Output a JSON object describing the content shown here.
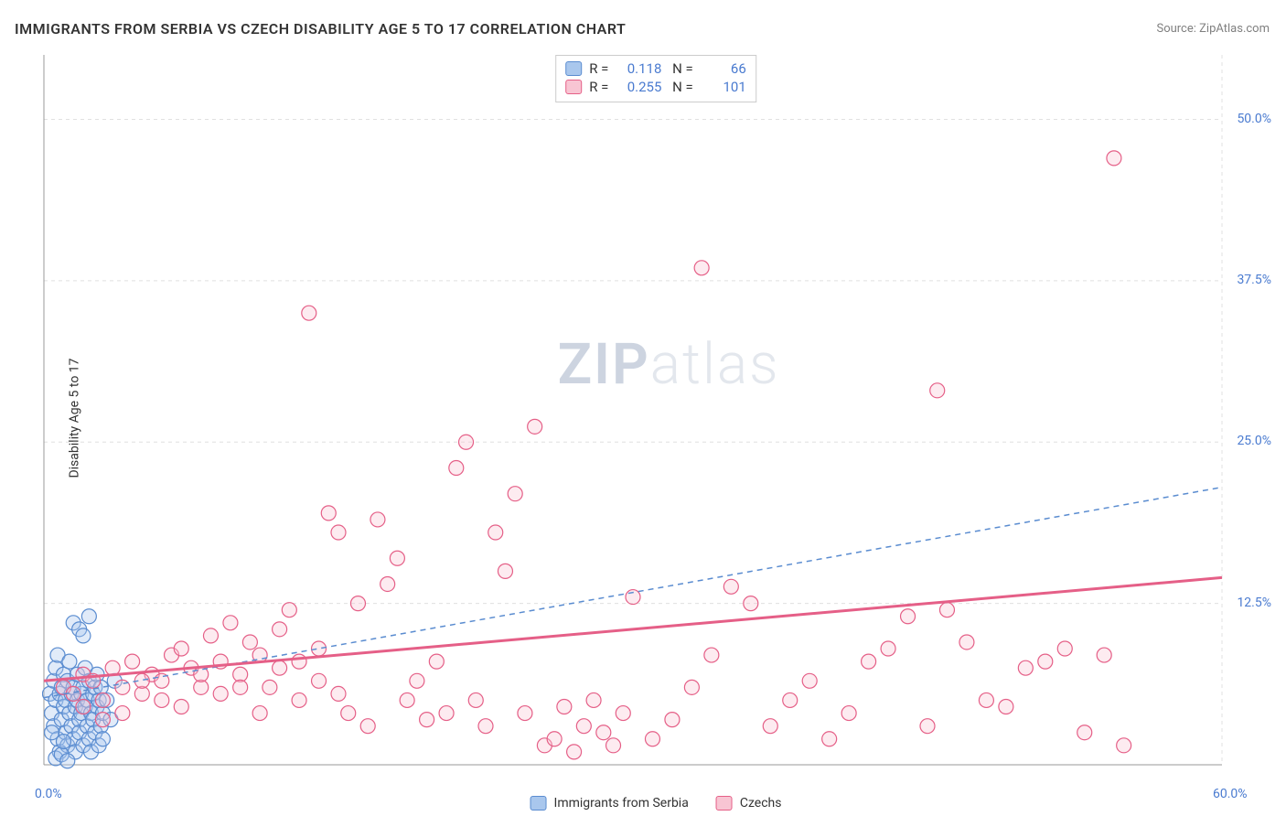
{
  "title": "IMMIGRANTS FROM SERBIA VS CZECH DISABILITY AGE 5 TO 17 CORRELATION CHART",
  "source": "Source: ZipAtlas.com",
  "y_axis_label": "Disability Age 5 to 17",
  "watermark": "ZIPatlas",
  "chart": {
    "type": "scatter",
    "background_color": "#ffffff",
    "border_color": "#999999",
    "grid_color": "#e0e0e0",
    "grid_dash": "4 4",
    "xlim": [
      0,
      60
    ],
    "ylim": [
      0,
      55
    ],
    "x_ticks": [
      {
        "v": 0,
        "label": "0.0%"
      },
      {
        "v": 60,
        "label": "60.0%"
      }
    ],
    "y_ticks": [
      {
        "v": 12.5,
        "label": "12.5%"
      },
      {
        "v": 25.0,
        "label": "25.0%"
      },
      {
        "v": 37.5,
        "label": "37.5%"
      },
      {
        "v": 50.0,
        "label": "50.0%"
      }
    ],
    "marker_radius": 8,
    "marker_opacity": 0.35,
    "series": [
      {
        "name": "Immigrants from Serbia",
        "color_fill": "#a9c7ed",
        "color_stroke": "#5a8cd0",
        "R": "0.118",
        "N": "66",
        "trend": {
          "stroke": "#5a8cd0",
          "dash": "6 5",
          "width": 1.5,
          "x1": 0,
          "y1": 5.2,
          "x2": 60,
          "y2": 21.5
        },
        "points": [
          [
            0.3,
            5.5
          ],
          [
            0.4,
            4.0
          ],
          [
            0.5,
            6.5
          ],
          [
            0.5,
            3.0
          ],
          [
            0.6,
            5.0
          ],
          [
            0.6,
            7.5
          ],
          [
            0.7,
            2.0
          ],
          [
            0.7,
            8.5
          ],
          [
            0.8,
            1.0
          ],
          [
            0.8,
            5.5
          ],
          [
            0.9,
            6.0
          ],
          [
            0.9,
            3.5
          ],
          [
            1.0,
            4.5
          ],
          [
            1.0,
            7.0
          ],
          [
            1.1,
            2.5
          ],
          [
            1.1,
            5.0
          ],
          [
            1.2,
            1.5
          ],
          [
            1.2,
            6.5
          ],
          [
            1.3,
            4.0
          ],
          [
            1.3,
            8.0
          ],
          [
            1.4,
            3.0
          ],
          [
            1.4,
            5.5
          ],
          [
            1.5,
            2.0
          ],
          [
            1.5,
            6.0
          ],
          [
            1.6,
            4.5
          ],
          [
            1.6,
            1.0
          ],
          [
            1.7,
            5.0
          ],
          [
            1.7,
            7.0
          ],
          [
            1.8,
            3.5
          ],
          [
            1.8,
            2.5
          ],
          [
            1.9,
            5.5
          ],
          [
            1.9,
            4.0
          ],
          [
            2.0,
            6.0
          ],
          [
            2.0,
            1.5
          ],
          [
            2.1,
            4.5
          ],
          [
            2.1,
            7.5
          ],
          [
            2.2,
            3.0
          ],
          [
            2.2,
            5.0
          ],
          [
            2.3,
            2.0
          ],
          [
            2.3,
            6.5
          ],
          [
            2.4,
            4.0
          ],
          [
            2.4,
            1.0
          ],
          [
            2.5,
            5.5
          ],
          [
            2.5,
            3.5
          ],
          [
            2.6,
            6.0
          ],
          [
            2.6,
            2.5
          ],
          [
            2.7,
            4.5
          ],
          [
            2.7,
            7.0
          ],
          [
            2.8,
            5.0
          ],
          [
            2.8,
            1.5
          ],
          [
            2.9,
            3.0
          ],
          [
            2.9,
            6.0
          ],
          [
            3.0,
            4.0
          ],
          [
            3.0,
            2.0
          ],
          [
            3.2,
            5.0
          ],
          [
            3.4,
            3.5
          ],
          [
            3.6,
            6.5
          ],
          [
            0.6,
            0.5
          ],
          [
            0.9,
            0.8
          ],
          [
            1.2,
            0.3
          ],
          [
            1.5,
            11.0
          ],
          [
            1.8,
            10.5
          ],
          [
            2.0,
            10.0
          ],
          [
            2.3,
            11.5
          ],
          [
            0.4,
            2.5
          ],
          [
            1.0,
            1.8
          ]
        ]
      },
      {
        "name": "Czechs",
        "color_fill": "#f8c5d3",
        "color_stroke": "#e55f87",
        "R": "0.255",
        "N": "101",
        "trend": {
          "stroke": "#e55f87",
          "dash": "none",
          "width": 3,
          "x1": 0,
          "y1": 6.5,
          "x2": 60,
          "y2": 14.5
        },
        "points": [
          [
            1.0,
            6.0
          ],
          [
            1.5,
            5.5
          ],
          [
            2.0,
            7.0
          ],
          [
            2.5,
            6.5
          ],
          [
            3.0,
            5.0
          ],
          [
            3.5,
            7.5
          ],
          [
            4.0,
            6.0
          ],
          [
            4.5,
            8.0
          ],
          [
            5.0,
            5.5
          ],
          [
            5.5,
            7.0
          ],
          [
            6.0,
            6.5
          ],
          [
            6.5,
            8.5
          ],
          [
            7.0,
            9.0
          ],
          [
            7.5,
            7.5
          ],
          [
            8.0,
            6.0
          ],
          [
            8.5,
            10.0
          ],
          [
            9.0,
            8.0
          ],
          [
            9.5,
            11.0
          ],
          [
            10.0,
            7.0
          ],
          [
            10.5,
            9.5
          ],
          [
            11.0,
            8.5
          ],
          [
            11.5,
            6.0
          ],
          [
            12.0,
            10.5
          ],
          [
            12.5,
            12.0
          ],
          [
            13.0,
            8.0
          ],
          [
            13.5,
            35.0
          ],
          [
            14.0,
            9.0
          ],
          [
            14.5,
            19.5
          ],
          [
            15.0,
            18.0
          ],
          [
            15.5,
            4.0
          ],
          [
            16.0,
            12.5
          ],
          [
            16.5,
            3.0
          ],
          [
            17.0,
            19.0
          ],
          [
            17.5,
            14.0
          ],
          [
            18.0,
            16.0
          ],
          [
            18.5,
            5.0
          ],
          [
            19.0,
            6.5
          ],
          [
            19.5,
            3.5
          ],
          [
            20.0,
            8.0
          ],
          [
            20.5,
            4.0
          ],
          [
            21.0,
            23.0
          ],
          [
            21.5,
            25.0
          ],
          [
            22.0,
            5.0
          ],
          [
            22.5,
            3.0
          ],
          [
            23.0,
            18.0
          ],
          [
            23.5,
            15.0
          ],
          [
            24.0,
            21.0
          ],
          [
            24.5,
            4.0
          ],
          [
            25.0,
            26.2
          ],
          [
            25.5,
            1.5
          ],
          [
            26.0,
            2.0
          ],
          [
            26.5,
            4.5
          ],
          [
            27.0,
            1.0
          ],
          [
            27.5,
            3.0
          ],
          [
            28.0,
            5.0
          ],
          [
            28.5,
            2.5
          ],
          [
            29.0,
            1.5
          ],
          [
            29.5,
            4.0
          ],
          [
            30.0,
            13.0
          ],
          [
            31.0,
            2.0
          ],
          [
            32.0,
            3.5
          ],
          [
            33.0,
            6.0
          ],
          [
            33.5,
            38.5
          ],
          [
            34.0,
            8.5
          ],
          [
            35.0,
            13.8
          ],
          [
            36.0,
            12.5
          ],
          [
            37.0,
            3.0
          ],
          [
            38.0,
            5.0
          ],
          [
            39.0,
            6.5
          ],
          [
            40.0,
            2.0
          ],
          [
            41.0,
            4.0
          ],
          [
            42.0,
            8.0
          ],
          [
            43.0,
            9.0
          ],
          [
            44.0,
            11.5
          ],
          [
            45.0,
            3.0
          ],
          [
            45.5,
            29.0
          ],
          [
            46.0,
            12.0
          ],
          [
            47.0,
            9.5
          ],
          [
            48.0,
            5.0
          ],
          [
            49.0,
            4.5
          ],
          [
            50.0,
            7.5
          ],
          [
            51.0,
            8.0
          ],
          [
            52.0,
            9.0
          ],
          [
            53.0,
            2.5
          ],
          [
            54.0,
            8.5
          ],
          [
            54.5,
            47.0
          ],
          [
            55.0,
            1.5
          ],
          [
            2.0,
            4.5
          ],
          [
            3.0,
            3.5
          ],
          [
            4.0,
            4.0
          ],
          [
            5.0,
            6.5
          ],
          [
            6.0,
            5.0
          ],
          [
            7.0,
            4.5
          ],
          [
            8.0,
            7.0
          ],
          [
            9.0,
            5.5
          ],
          [
            10.0,
            6.0
          ],
          [
            11.0,
            4.0
          ],
          [
            12.0,
            7.5
          ],
          [
            13.0,
            5.0
          ],
          [
            14.0,
            6.5
          ],
          [
            15.0,
            5.5
          ]
        ]
      }
    ]
  },
  "colors": {
    "title_text": "#333333",
    "source_text": "#808080",
    "axis_text": "#4a7bd0"
  }
}
